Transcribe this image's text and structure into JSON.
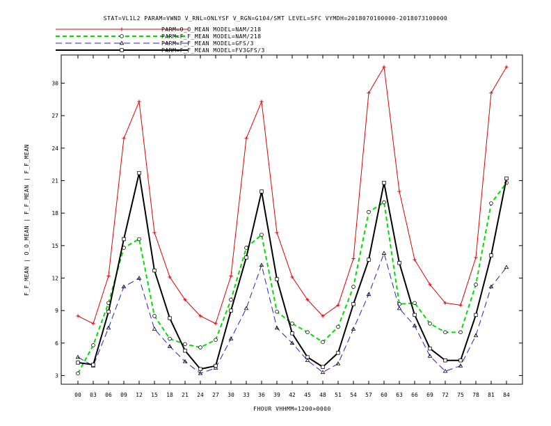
{
  "chart_data": {
    "type": "line",
    "title": "STAT=VL1L2 PARAM=VWND V_RNL=ONLYSF V_RGN=G104/SMT LEVEL=SFC VYMDH=2018070100000-2018073100000",
    "xlabel": "FHOUR VHHMM=1200>0000",
    "ylabel": "F_F_MEAN | O_O_MEAN | F_F_MEAN | F_F_MEAN",
    "categories": [
      "00",
      "03",
      "06",
      "09",
      "12",
      "15",
      "18",
      "21",
      "24",
      "27",
      "30",
      "33",
      "36",
      "39",
      "42",
      "45",
      "48",
      "51",
      "54",
      "57",
      "60",
      "63",
      "66",
      "69",
      "72",
      "75",
      "78",
      "81",
      "84"
    ],
    "yticks": [
      3,
      6,
      9,
      12,
      15,
      18,
      21,
      24,
      27,
      30
    ],
    "ylim": [
      2.2,
      32.6
    ],
    "grid": false,
    "legend_position": "top",
    "series": [
      {
        "name": "PARM=O_O_MEAN MODEL=NAM/218",
        "color": "#e00000",
        "dash": "",
        "width": 1,
        "marker": "plus",
        "values": [
          8.5,
          7.8,
          12.2,
          24.9,
          28.3,
          16.2,
          12.1,
          10.0,
          8.5,
          7.8,
          12.2,
          24.9,
          28.3,
          16.2,
          12.1,
          10.0,
          8.5,
          9.5,
          13.8,
          29.1,
          31.5,
          20.0,
          13.7,
          11.4,
          9.7,
          9.5,
          13.9,
          29.1,
          31.5
        ]
      },
      {
        "name": "PARM=F_F_MEAN MODEL=NAM/218",
        "color": "#00dd00",
        "dash": "6,4",
        "width": 2,
        "marker": "circle",
        "values": [
          3.2,
          5.8,
          9.7,
          14.8,
          15.6,
          8.5,
          6.4,
          5.9,
          5.6,
          6.3,
          10.0,
          14.8,
          16.0,
          8.9,
          7.8,
          7.0,
          6.1,
          7.5,
          11.2,
          18.1,
          19.0,
          9.6,
          9.7,
          7.8,
          7.0,
          7.0,
          11.4,
          18.9,
          20.8
        ]
      },
      {
        "name": "PARM=F_F_MEAN MODEL=GFS/3",
        "color": "#2222cc",
        "dash": "9,5",
        "width": 1,
        "marker": "triangle",
        "values": [
          4.7,
          3.9,
          7.4,
          11.2,
          12.0,
          7.3,
          5.7,
          4.3,
          3.2,
          3.7,
          6.4,
          9.2,
          13.2,
          7.4,
          6.0,
          4.4,
          3.3,
          4.1,
          7.3,
          10.5,
          14.3,
          9.2,
          7.6,
          4.8,
          3.4,
          3.9,
          6.7,
          11.2,
          13.0
        ]
      },
      {
        "name": "PARM=F_F_MEAN MODEL=FV3GFS/3",
        "color": "#000000",
        "dash": "",
        "width": 2,
        "marker": "square",
        "values": [
          4.2,
          4.0,
          8.9,
          15.6,
          21.7,
          12.7,
          8.3,
          5.3,
          3.6,
          3.9,
          9.0,
          13.9,
          20.0,
          11.9,
          6.9,
          4.7,
          3.8,
          5.1,
          9.6,
          13.7,
          20.8,
          13.4,
          8.6,
          5.5,
          4.4,
          4.4,
          8.6,
          14.1,
          21.2
        ]
      }
    ]
  }
}
